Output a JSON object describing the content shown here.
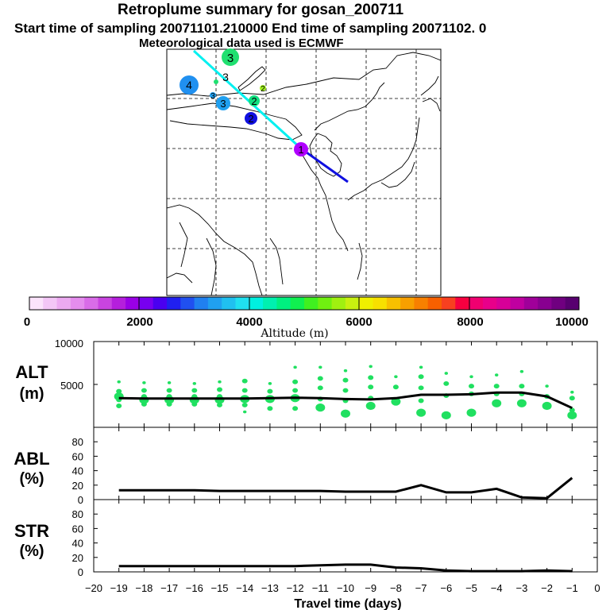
{
  "header": {
    "title": "Retroplume summary for gosan_200711",
    "sampling_line": "Start time of sampling 20071101.210000     End time of sampling 20071102.     0",
    "met_line": "Meteorological data used is ECMWF"
  },
  "map": {
    "plume_points": [
      {
        "label": "1",
        "color": "#b000ff"
      },
      {
        "label": "2",
        "color": "#1010e0"
      },
      {
        "label": "2",
        "color": "#10e080"
      },
      {
        "label": "2",
        "color": "#a0f020"
      },
      {
        "label": "3",
        "color": "#20e070"
      },
      {
        "label": "3",
        "color": "#20a0f0"
      },
      {
        "label": "3",
        "color": "#20a0f0"
      },
      {
        "label": "3",
        "color": "#20e070"
      },
      {
        "label": "4",
        "color": "#2090f0"
      }
    ]
  },
  "colorbar": {
    "tick_labels": [
      "0",
      "2000",
      "4000",
      "6000",
      "8000",
      "10000"
    ],
    "label": "Altitude (m)",
    "colors": [
      "#fbe3fb",
      "#f3c6f6",
      "#ecaaf1",
      "#e58dee",
      "#d96ce8",
      "#c944e0",
      "#b51fdc",
      "#9a00e6",
      "#7800f0",
      "#4a00f0",
      "#2020f0",
      "#2050f0",
      "#2080f0",
      "#20a0f0",
      "#20c0f0",
      "#20e0f0",
      "#00f0e0",
      "#00f0b0",
      "#00f080",
      "#10f050",
      "#40f020",
      "#70f010",
      "#a0f010",
      "#c8f010",
      "#f0f000",
      "#f8e000",
      "#f8c000",
      "#f8a000",
      "#f88000",
      "#f86000",
      "#f84020",
      "#f80040",
      "#f00070",
      "#e8008a",
      "#d80098",
      "#c000a0",
      "#a0009a",
      "#880090",
      "#700080",
      "#580070"
    ]
  },
  "chart_data": [
    {
      "type": "scatter-line",
      "panel": "ALT",
      "ylabel": "ALT\n(m)",
      "ylabel_top": "ALT",
      "ylabel_bottom": "(m)",
      "ylim": [
        0,
        10000
      ],
      "yticks": [
        0,
        5000,
        10000
      ],
      "ytick_labels": [
        "5000",
        "10000"
      ],
      "x": [
        -19,
        -18,
        -17,
        -16,
        -15,
        -14,
        -13,
        -12,
        -11,
        -10,
        -9,
        -8,
        -7,
        -6,
        -5,
        -4,
        -3,
        -2,
        -1
      ],
      "median_line": [
        3400,
        3350,
        3350,
        3350,
        3350,
        3350,
        3400,
        3450,
        3400,
        3300,
        3250,
        3400,
        3800,
        3800,
        3850,
        4050,
        4050,
        3600,
        2250
      ],
      "clusters": [
        [
          3600,
          3200,
          4200,
          2500,
          5300
        ],
        [
          3200,
          3600,
          2700,
          4300,
          5200
        ],
        [
          3200,
          3600,
          2700,
          4300,
          5200
        ],
        [
          3200,
          3600,
          2700,
          4300,
          5100
        ],
        [
          3200,
          3600,
          2600,
          4400,
          5300
        ],
        [
          3300,
          2600,
          4300,
          5400,
          1800
        ],
        [
          3300,
          2200,
          4200,
          5100
        ],
        [
          3400,
          2200,
          4300,
          5300,
          7000
        ],
        [
          2300,
          3300,
          4600,
          5700,
          7000
        ],
        [
          1600,
          3100,
          4300,
          5500,
          6600
        ],
        [
          2500,
          3400,
          4700,
          5800,
          7100
        ],
        [
          3000,
          4700,
          5900
        ],
        [
          1700,
          3100,
          4600,
          5900,
          7000
        ],
        [
          1400,
          3700,
          5100,
          6300
        ],
        [
          1700,
          3900,
          4800,
          5900
        ],
        [
          2800,
          3900,
          4800,
          6100
        ],
        [
          2800,
          3900,
          4800,
          6500
        ],
        [
          2500,
          3600,
          4800
        ],
        [
          1400,
          2000,
          3400,
          4100
        ]
      ]
    },
    {
      "type": "line",
      "panel": "ABL",
      "ylabel_top": "ABL",
      "ylabel_bottom": "(%)",
      "ylim": [
        0,
        100
      ],
      "yticks": [
        0,
        20,
        40,
        60,
        80
      ],
      "ytick_labels": [
        "0",
        "20",
        "40",
        "60",
        "80"
      ],
      "x": [
        -19,
        -18,
        -17,
        -16,
        -15,
        -14,
        -13,
        -12,
        -11,
        -10,
        -9,
        -8,
        -7,
        -6,
        -5,
        -4,
        -3,
        -2,
        -1
      ],
      "values": [
        13,
        13,
        13,
        13,
        12,
        12,
        12,
        12,
        12,
        11,
        11,
        11,
        20,
        10,
        10,
        15,
        3,
        2,
        30
      ]
    },
    {
      "type": "line",
      "panel": "STR",
      "ylabel_top": "STR",
      "ylabel_bottom": "(%)",
      "ylim": [
        0,
        100
      ],
      "yticks": [
        0,
        20,
        40,
        60,
        80
      ],
      "ytick_labels": [
        "0",
        "20",
        "40",
        "60",
        "80"
      ],
      "x": [
        -19,
        -18,
        -17,
        -16,
        -15,
        -14,
        -13,
        -12,
        -11,
        -10,
        -9,
        -8,
        -7,
        -6,
        -5,
        -4,
        -3,
        -2,
        -1
      ],
      "values": [
        8,
        8,
        8,
        8,
        8,
        8,
        8,
        8,
        9,
        10,
        10,
        6,
        5,
        2,
        1,
        1,
        1,
        2,
        1
      ],
      "xlabel": "Travel time (days)",
      "xlim": [
        -20,
        0
      ],
      "xtick_labels": [
        "−20",
        "−19",
        "−18",
        "−17",
        "−16",
        "−15",
        "−14",
        "−13",
        "−12",
        "−11",
        "−10",
        "−9",
        "−8",
        "−7",
        "−6",
        "−5",
        "−4",
        "−3",
        "−2",
        "−1",
        "0"
      ]
    }
  ]
}
